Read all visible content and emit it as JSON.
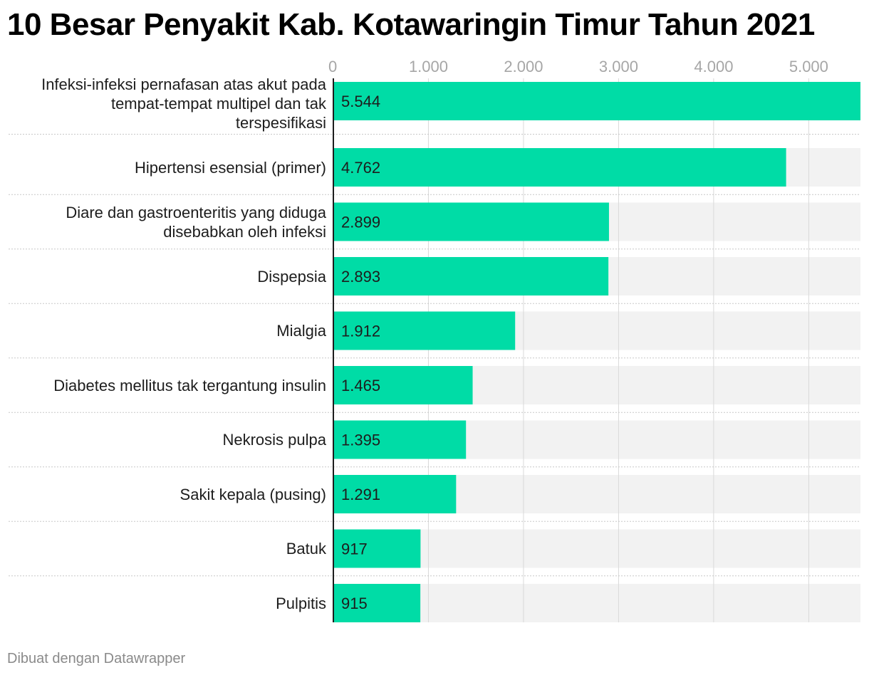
{
  "chart_data": {
    "type": "bar",
    "orientation": "horizontal",
    "title": "10 Besar Penyakit Kab. Kotawaringin Timur Tahun 2021",
    "categories": [
      "Infeksi-infeksi pernafasan atas akut pada tempat-tempat multipel dan tak terspesifikasi",
      "Hipertensi esensial (primer)",
      "Diare dan gastroenteritis yang diduga disebabkan oleh infeksi",
      "Dispepsia",
      "Mialgia",
      "Diabetes mellitus tak tergantung insulin",
      "Nekrosis pulpa",
      "Sakit kepala (pusing)",
      "Batuk",
      "Pulpitis"
    ],
    "category_lines": [
      [
        "Infeksi-infeksi pernafasan atas akut pada",
        "tempat-tempat multipel dan tak",
        "terspesifikasi"
      ],
      [
        "Hipertensi esensial (primer)"
      ],
      [
        "Diare dan gastroenteritis yang diduga",
        "disebabkan oleh infeksi"
      ],
      [
        "Dispepsia"
      ],
      [
        "Mialgia"
      ],
      [
        "Diabetes mellitus tak tergantung insulin"
      ],
      [
        "Nekrosis pulpa"
      ],
      [
        "Sakit kepala (pusing)"
      ],
      [
        "Batuk"
      ],
      [
        "Pulpitis"
      ]
    ],
    "values": [
      5544,
      4762,
      2899,
      2893,
      1912,
      1465,
      1395,
      1291,
      917,
      915
    ],
    "value_labels": [
      "5.544",
      "4.762",
      "2.899",
      "2.893",
      "1.912",
      "1.465",
      "1.395",
      "1.291",
      "917",
      "915"
    ],
    "xlim": [
      0,
      5544
    ],
    "xticks": [
      0,
      1000,
      2000,
      3000,
      4000,
      5000
    ],
    "xtick_labels": [
      "0",
      "1.000",
      "2.000",
      "3.000",
      "4.000",
      "5.000"
    ],
    "xaxis_position": "top",
    "grid": true,
    "legend": "none",
    "colors": {
      "bar": "#00dca6",
      "track": "#f2f2f2",
      "grid": "#d9d9d9",
      "axis": "#1d1d1d",
      "separator": "#c8c8c8"
    }
  },
  "footer": {
    "credit": "Dibuat dengan Datawrapper"
  }
}
